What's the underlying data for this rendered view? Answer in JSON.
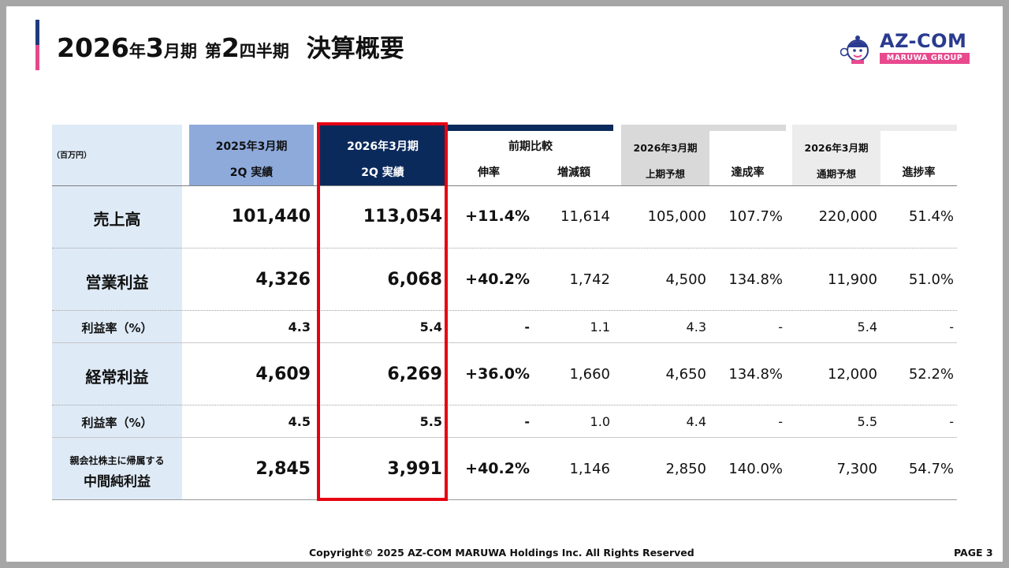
{
  "title": {
    "year": "2026",
    "nen": "年",
    "month": "3",
    "gappi": "月期",
    "dai": "第",
    "quarter": "2",
    "shihanki": "四半期",
    "summary": "決算概要"
  },
  "logo": {
    "name": "AZ-COM",
    "group": "MARUWA GROUP",
    "icon": "mascot-icon"
  },
  "table": {
    "unit": "（百万円）",
    "headers": {
      "prev_period": "2025年3月期",
      "prev_sub": "2Q 実績",
      "curr_period": "2026年3月期",
      "curr_sub": "2Q 実績",
      "compare": "前期比較",
      "growth": "伸率",
      "diff": "増減額",
      "h1_period": "2026年3月期",
      "h1_forecast": "上期予想",
      "achieve": "達成率",
      "fy_period": "2026年3月期",
      "fy_forecast": "通期予想",
      "progress": "進捗率"
    },
    "rows": [
      {
        "label": "売上高",
        "prev": "101,440",
        "curr": "113,054",
        "growth": "+11.4%",
        "diff": "11,614",
        "h1": "105,000",
        "achieve": "107.7%",
        "fy": "220,000",
        "progress": "51.4%"
      },
      {
        "label": "営業利益",
        "prev": "4,326",
        "curr": "6,068",
        "growth": "+40.2%",
        "diff": "1,742",
        "h1": "4,500",
        "achieve": "134.8%",
        "fy": "11,900",
        "progress": "51.0%"
      },
      {
        "label": "利益率（%）",
        "prev": "4.3",
        "curr": "5.4",
        "growth": "-",
        "diff": "1.1",
        "h1": "4.3",
        "achieve": "-",
        "fy": "5.4",
        "progress": "-"
      },
      {
        "label": "経常利益",
        "prev": "4,609",
        "curr": "6,269",
        "growth": "+36.0%",
        "diff": "1,660",
        "h1": "4,650",
        "achieve": "134.8%",
        "fy": "12,000",
        "progress": "52.2%"
      },
      {
        "label": "利益率（%）",
        "prev": "4.5",
        "curr": "5.5",
        "growth": "-",
        "diff": "1.0",
        "h1": "4.4",
        "achieve": "-",
        "fy": "5.5",
        "progress": "-"
      },
      {
        "label_line1": "親会社株主に帰属する",
        "label_line2": "中間純利益",
        "prev": "2,845",
        "curr": "3,991",
        "growth": "+40.2%",
        "diff": "1,146",
        "h1": "2,850",
        "achieve": "140.0%",
        "fy": "7,300",
        "progress": "54.7%"
      }
    ]
  },
  "colors": {
    "label_bg": "#deeaf6",
    "prev_header_bg": "#8eaadb",
    "curr_header_bg": "#0b2a5c",
    "highlight_border": "#e60012",
    "accent_blue": "#1f3a7a",
    "accent_pink": "#e4498a"
  },
  "footer": {
    "copyright": "Copyright© 2025 AZ-COM MARUWA Holdings Inc. All Rights Reserved",
    "page": "PAGE 3"
  }
}
